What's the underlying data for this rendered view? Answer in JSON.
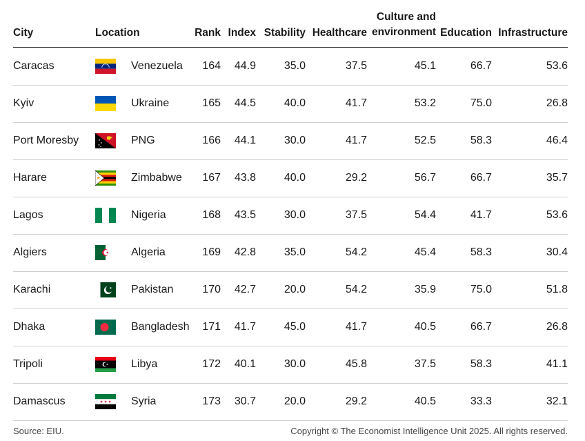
{
  "chart_data": {
    "type": "table",
    "columns": [
      "City",
      "Location",
      "Rank",
      "Index",
      "Stability",
      "Healthcare",
      "Culture and environment",
      "Education",
      "Infrastructure"
    ],
    "rows": [
      {
        "city": "Caracas",
        "country": "Venezuela",
        "flag": "venezuela-flag",
        "rank": "164",
        "index": "44.9",
        "stability": "35.0",
        "healthcare": "37.5",
        "culture": "45.1",
        "education": "66.7",
        "infrastructure": "53.6"
      },
      {
        "city": "Kyiv",
        "country": "Ukraine",
        "flag": "ukraine-flag",
        "rank": "165",
        "index": "44.5",
        "stability": "40.0",
        "healthcare": "41.7",
        "culture": "53.2",
        "education": "75.0",
        "infrastructure": "26.8"
      },
      {
        "city": "Port Moresby",
        "country": "PNG",
        "flag": "papua-new-guinea-flag",
        "rank": "166",
        "index": "44.1",
        "stability": "30.0",
        "healthcare": "41.7",
        "culture": "52.5",
        "education": "58.3",
        "infrastructure": "46.4"
      },
      {
        "city": "Harare",
        "country": "Zimbabwe",
        "flag": "zimbabwe-flag",
        "rank": "167",
        "index": "43.8",
        "stability": "40.0",
        "healthcare": "29.2",
        "culture": "56.7",
        "education": "66.7",
        "infrastructure": "35.7"
      },
      {
        "city": "Lagos",
        "country": "Nigeria",
        "flag": "nigeria-flag",
        "rank": "168",
        "index": "43.5",
        "stability": "30.0",
        "healthcare": "37.5",
        "culture": "54.4",
        "education": "41.7",
        "infrastructure": "53.6"
      },
      {
        "city": "Algiers",
        "country": "Algeria",
        "flag": "algeria-flag",
        "rank": "169",
        "index": "42.8",
        "stability": "35.0",
        "healthcare": "54.2",
        "culture": "45.4",
        "education": "58.3",
        "infrastructure": "30.4"
      },
      {
        "city": "Karachi",
        "country": "Pakistan",
        "flag": "pakistan-flag",
        "rank": "170",
        "index": "42.7",
        "stability": "20.0",
        "healthcare": "54.2",
        "culture": "35.9",
        "education": "75.0",
        "infrastructure": "51.8"
      },
      {
        "city": "Dhaka",
        "country": "Bangladesh",
        "flag": "bangladesh-flag",
        "rank": "171",
        "index": "41.7",
        "stability": "45.0",
        "healthcare": "41.7",
        "culture": "40.5",
        "education": "66.7",
        "infrastructure": "26.8"
      },
      {
        "city": "Tripoli",
        "country": "Libya",
        "flag": "libya-flag",
        "rank": "172",
        "index": "40.1",
        "stability": "30.0",
        "healthcare": "45.8",
        "culture": "37.5",
        "education": "58.3",
        "infrastructure": "41.1"
      },
      {
        "city": "Damascus",
        "country": "Syria",
        "flag": "syria-flag",
        "rank": "173",
        "index": "30.7",
        "stability": "20.0",
        "healthcare": "29.2",
        "culture": "40.5",
        "education": "33.3",
        "infrastructure": "32.1"
      }
    ],
    "source": "Source: EIU.",
    "copyright": "Copyright © The Economist Intelligence Unit 2025. All rights reserved."
  }
}
